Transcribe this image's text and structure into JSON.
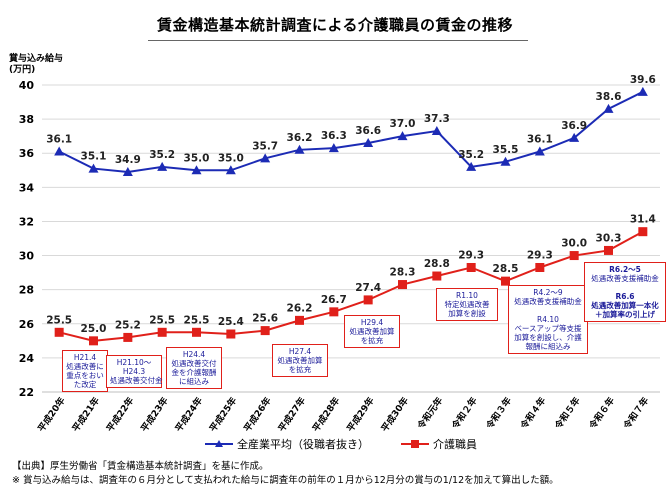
{
  "title": "賃金構造基本統計調査による介護職員の賃金の推移",
  "y_axis_label": [
    "賞与込み給与",
    "(万円)"
  ],
  "legend": {
    "all_industries": "全産業平均（役職者抜き）",
    "care_workers": "介護職員"
  },
  "footnotes": [
    "【出典】厚生労働省「賃金構造基本統計調査」を基に作成。",
    "※  賞与込み給与は、調査年の６月分として支払われた給与に調査年の前年の１月から12月分の賞与の1/12を加えて算出した額。"
  ],
  "annotations": [
    {
      "id": "h21-4",
      "lines": [
        "H21.4",
        "処遇改善に",
        "重点をおい",
        "た改定"
      ]
    },
    {
      "id": "h21-10",
      "lines": [
        "H21.10～",
        "H24.3",
        "処遇改善交付金"
      ]
    },
    {
      "id": "h24-4",
      "lines": [
        "H24.4",
        "処遇改善交付",
        "金を介護報酬",
        "に組込み"
      ]
    },
    {
      "id": "h27-4",
      "lines": [
        "H27.4",
        "処遇改善加算",
        "を拡充"
      ]
    },
    {
      "id": "h29-4",
      "lines": [
        "H29.4",
        "処遇改善加算",
        "を拡充"
      ]
    },
    {
      "id": "r1-10",
      "lines": [
        "R1.10",
        "特定処遇改善",
        "加算を創設"
      ]
    },
    {
      "id": "r4-2",
      "lines": [
        "R4.2～9",
        "処遇改善支援補助金",
        "",
        "R4.10",
        "ベースアップ等支援",
        "加算を創設し、介護",
        "報酬に組込み"
      ]
    },
    {
      "id": "r6",
      "lines": [
        "R6.2～5",
        "処遇改善支援補助金",
        "",
        "R6.6",
        "処遇改善加算一本化",
        "＋加算率の引上げ"
      ]
    }
  ],
  "chart_data": {
    "type": "line",
    "categories": [
      "平成20年",
      "平成21年",
      "平成22年",
      "平成23年",
      "平成24年",
      "平成25年",
      "平成26年",
      "平成27年",
      "平成28年",
      "平成29年",
      "平成30年",
      "令和元年",
      "令和２年",
      "令和３年",
      "令和４年",
      "令和５年",
      "令和６年",
      "令和７年"
    ],
    "ylim": [
      22,
      40
    ],
    "yticks": [
      22,
      24,
      26,
      28,
      30,
      32,
      34,
      36,
      38,
      40
    ],
    "grid": true,
    "legend_position": "bottom",
    "series": [
      {
        "name": "全産業平均（役職者抜き）",
        "color": "#1c2bb5",
        "marker": "triangle",
        "values": [
          36.1,
          35.1,
          34.9,
          35.2,
          35.0,
          35.0,
          35.7,
          36.2,
          36.3,
          36.6,
          37.0,
          37.3,
          35.2,
          35.5,
          36.1,
          36.9,
          38.6,
          39.6
        ]
      },
      {
        "name": "介護職員",
        "color": "#e0201a",
        "marker": "square",
        "values": [
          25.5,
          25.0,
          25.2,
          25.5,
          25.5,
          25.4,
          25.6,
          26.2,
          26.7,
          27.4,
          28.3,
          28.8,
          29.3,
          28.5,
          29.3,
          30.0,
          30.3,
          31.4
        ]
      }
    ]
  }
}
